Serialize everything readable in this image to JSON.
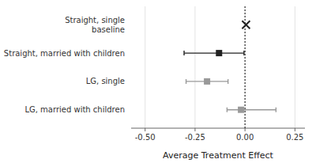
{
  "chart_data": {
    "type": "dot",
    "xlabel": "Average Treatment Effect",
    "categories": [
      "Straight, single\nbaseline",
      "Straight, married with children",
      "LG, single",
      "LG, married with children"
    ],
    "series": [
      {
        "marker": "x",
        "color": "#222222",
        "values": [
          0.005,
          null,
          null,
          null
        ],
        "ci_low": [
          null,
          null,
          null,
          null
        ],
        "ci_high": [
          null,
          null,
          null,
          null
        ]
      },
      {
        "marker": "square",
        "color": "#222222",
        "values": [
          null,
          -0.13,
          null,
          null
        ],
        "ci_low": [
          null,
          -0.305,
          null,
          null
        ],
        "ci_high": [
          null,
          -0.005,
          null,
          null
        ]
      },
      {
        "marker": "square",
        "color": "#999999",
        "values": [
          null,
          null,
          -0.19,
          -0.02
        ],
        "ci_low": [
          null,
          null,
          -0.295,
          -0.09
        ],
        "ci_high": [
          null,
          null,
          -0.085,
          0.155
        ]
      }
    ],
    "vline": 0.0,
    "xlim": [
      -0.57,
      0.3
    ],
    "xticks": [
      {
        "value": -0.5,
        "label": "-0.50"
      },
      {
        "value": -0.25,
        "label": "-0.25"
      },
      {
        "value": 0.0,
        "label": "0.00"
      },
      {
        "value": 0.25,
        "label": "0.25"
      }
    ],
    "grid": true
  }
}
